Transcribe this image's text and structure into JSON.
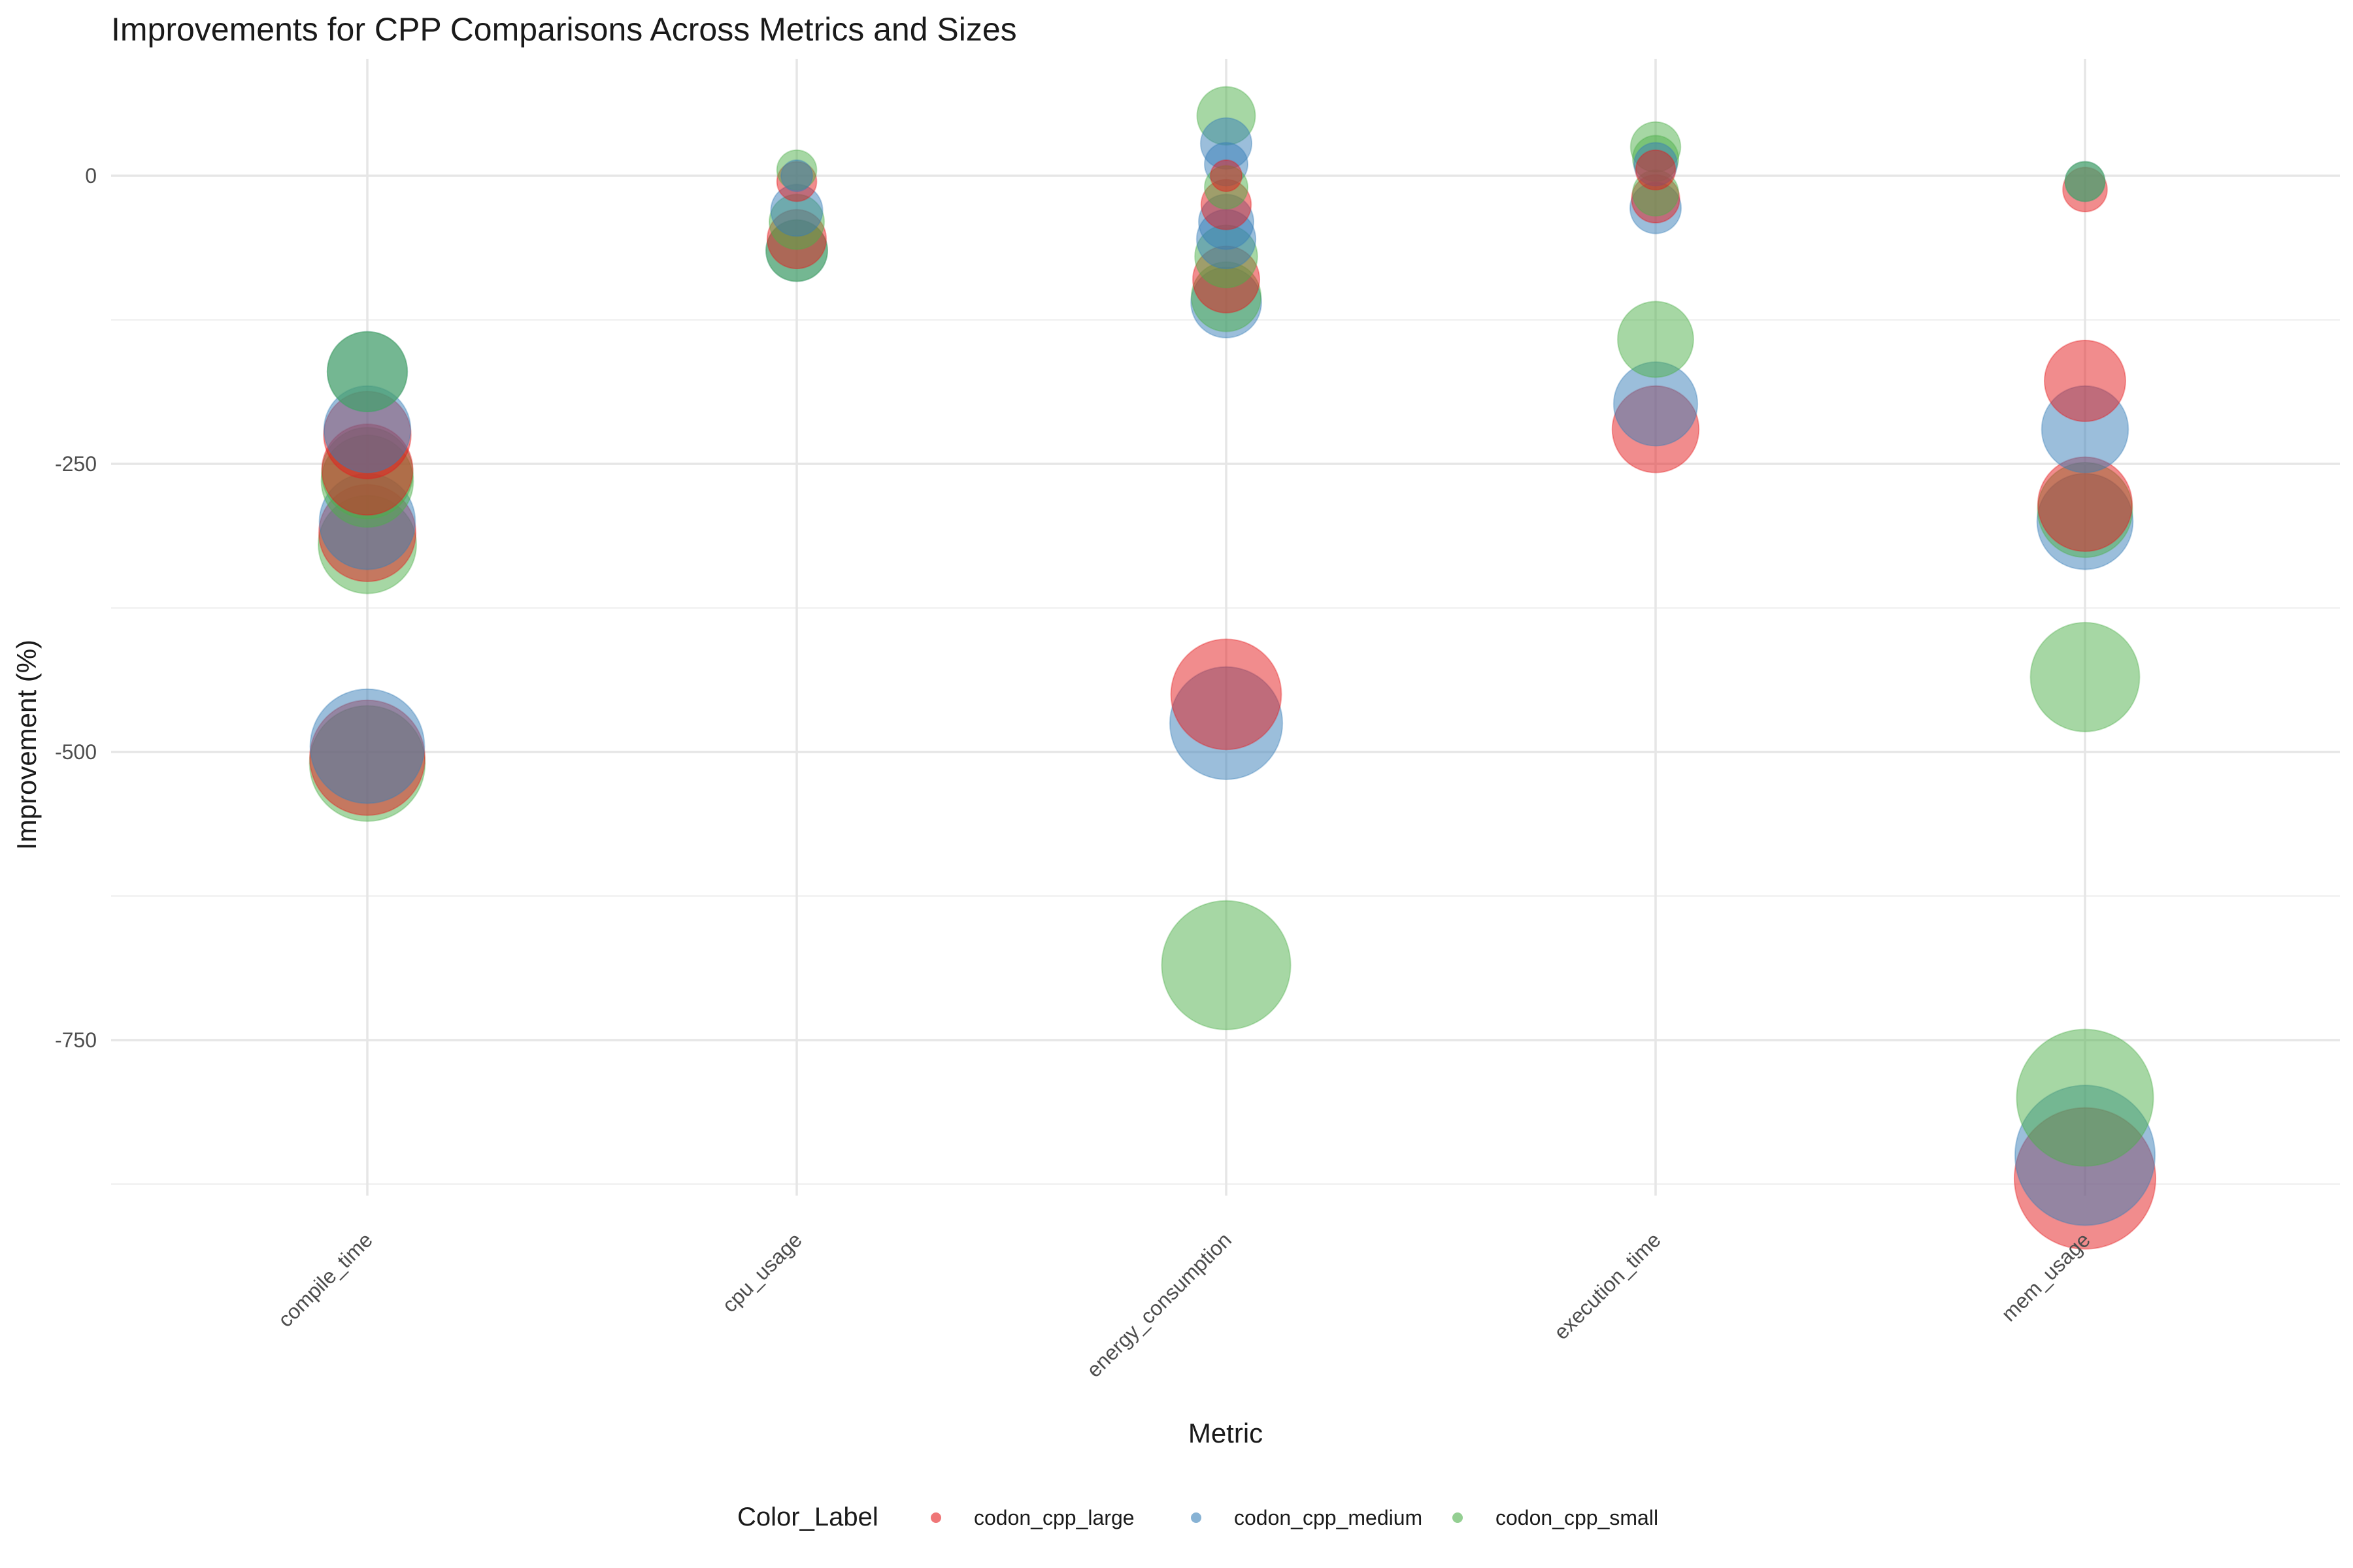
{
  "chart_data": {
    "type": "scatter",
    "title": "Improvements for CPP Comparisons Across Metrics and Sizes",
    "xlabel": "Metric",
    "ylabel": "Improvement (%)",
    "categories": [
      "compile_time",
      "cpu_usage",
      "energy_consumption",
      "execution_time",
      "mem_usage"
    ],
    "ylim": [
      -880,
      95
    ],
    "yticks": [
      0,
      -250,
      -500,
      -750
    ],
    "ytick_labels": [
      "0",
      "-250",
      "-500",
      "-750"
    ],
    "grid": true,
    "legend": {
      "title": "Color_Label",
      "position": "bottom",
      "entries": [
        "codon_cpp_large",
        "codon_cpp_medium",
        "codon_cpp_small"
      ]
    },
    "series": [
      {
        "name": "codon_cpp_large",
        "color": "#E41A1C",
        "points": [
          {
            "x": "compile_time",
            "y": -225
          },
          {
            "x": "compile_time",
            "y": -255
          },
          {
            "x": "compile_time",
            "y": -310
          },
          {
            "x": "compile_time",
            "y": -505
          },
          {
            "x": "cpu_usage",
            "y": -55
          },
          {
            "x": "cpu_usage",
            "y": -5
          },
          {
            "x": "energy_consumption",
            "y": -450
          },
          {
            "x": "energy_consumption",
            "y": -90
          },
          {
            "x": "energy_consumption",
            "y": -25
          },
          {
            "x": "energy_consumption",
            "y": 0
          },
          {
            "x": "execution_time",
            "y": -220
          },
          {
            "x": "execution_time",
            "y": 5
          },
          {
            "x": "execution_time",
            "y": -20
          },
          {
            "x": "mem_usage",
            "y": -870
          },
          {
            "x": "mem_usage",
            "y": -285
          },
          {
            "x": "mem_usage",
            "y": -178
          },
          {
            "x": "mem_usage",
            "y": -12
          }
        ]
      },
      {
        "name": "codon_cpp_medium",
        "color": "#377EB8",
        "points": [
          {
            "x": "compile_time",
            "y": -170
          },
          {
            "x": "compile_time",
            "y": -220
          },
          {
            "x": "compile_time",
            "y": -300
          },
          {
            "x": "compile_time",
            "y": -495
          },
          {
            "x": "cpu_usage",
            "y": -65
          },
          {
            "x": "cpu_usage",
            "y": -30
          },
          {
            "x": "cpu_usage",
            "y": 0
          },
          {
            "x": "energy_consumption",
            "y": -475
          },
          {
            "x": "energy_consumption",
            "y": -110
          },
          {
            "x": "energy_consumption",
            "y": -55
          },
          {
            "x": "energy_consumption",
            "y": -40
          },
          {
            "x": "energy_consumption",
            "y": 10
          },
          {
            "x": "energy_consumption",
            "y": 28
          },
          {
            "x": "execution_time",
            "y": -198
          },
          {
            "x": "execution_time",
            "y": -28
          },
          {
            "x": "execution_time",
            "y": 10
          },
          {
            "x": "mem_usage",
            "y": -850
          },
          {
            "x": "mem_usage",
            "y": -300
          },
          {
            "x": "mem_usage",
            "y": -220
          },
          {
            "x": "mem_usage",
            "y": -5
          }
        ]
      },
      {
        "name": "codon_cpp_small",
        "color": "#4DAF4A",
        "points": [
          {
            "x": "compile_time",
            "y": -170
          },
          {
            "x": "compile_time",
            "y": -258
          },
          {
            "x": "compile_time",
            "y": -265
          },
          {
            "x": "compile_time",
            "y": -320
          },
          {
            "x": "compile_time",
            "y": -510
          },
          {
            "x": "cpu_usage",
            "y": -65
          },
          {
            "x": "cpu_usage",
            "y": -40
          },
          {
            "x": "cpu_usage",
            "y": 5
          },
          {
            "x": "energy_consumption",
            "y": -685
          },
          {
            "x": "energy_consumption",
            "y": -105
          },
          {
            "x": "energy_consumption",
            "y": -70
          },
          {
            "x": "energy_consumption",
            "y": -10
          },
          {
            "x": "energy_consumption",
            "y": 52
          },
          {
            "x": "execution_time",
            "y": -142
          },
          {
            "x": "execution_time",
            "y": -15
          },
          {
            "x": "execution_time",
            "y": 15
          },
          {
            "x": "execution_time",
            "y": 25
          },
          {
            "x": "mem_usage",
            "y": -800
          },
          {
            "x": "mem_usage",
            "y": -435
          },
          {
            "x": "mem_usage",
            "y": -290
          },
          {
            "x": "mem_usage",
            "y": -5
          }
        ]
      }
    ]
  }
}
